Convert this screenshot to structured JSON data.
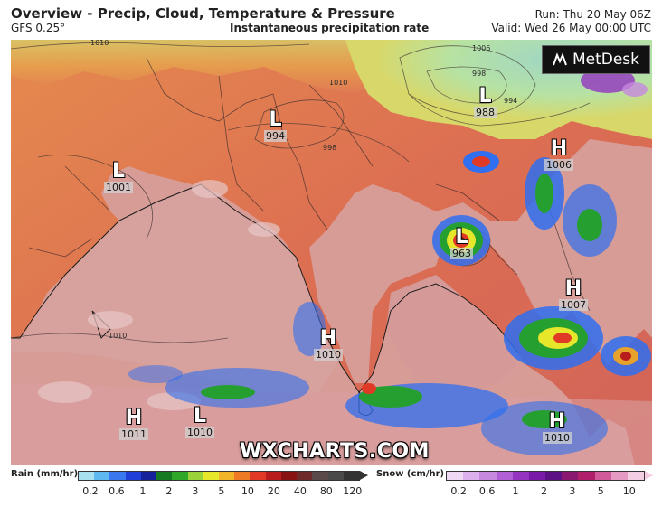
{
  "header": {
    "title": "Overview - Precip, Cloud, Temperature & Pressure",
    "model": "GFS 0.25°",
    "subtitle": "Instantaneous precipitation rate",
    "run": "Run: Thu 20 May 06Z",
    "valid": "Valid: Wed 26 May 00:00 UTC"
  },
  "logo": {
    "text": "MetDesk",
    "icon": "metdesk-logo-icon"
  },
  "watermark": "WXCHARTS.COM",
  "pressure_systems": [
    {
      "type": "L",
      "value": "994"
    },
    {
      "type": "L",
      "value": "1001"
    },
    {
      "type": "L",
      "value": "988"
    },
    {
      "type": "H",
      "value": "1006"
    },
    {
      "type": "L",
      "value": "963"
    },
    {
      "type": "H",
      "value": "1007"
    },
    {
      "type": "H",
      "value": "1010"
    },
    {
      "type": "H",
      "value": "1011"
    },
    {
      "type": "L",
      "value": "1010"
    },
    {
      "type": "H",
      "value": "1010"
    }
  ],
  "isobar_labels": [
    "1010",
    "1006",
    "998",
    "994",
    "998",
    "1010",
    "1010"
  ],
  "legend": {
    "rain_title": "Rain (mm/hr)",
    "rain_ticks": [
      "0.2",
      "0.6",
      "1",
      "2",
      "3",
      "5",
      "10",
      "20",
      "40",
      "80",
      "120"
    ],
    "rain_colors": [
      "#a8e0f0",
      "#5fb8f0",
      "#3a78f0",
      "#1f3fd8",
      "#16229a",
      "#157a22",
      "#2fa82a",
      "#9ad23a",
      "#e6e62a",
      "#f2b52a",
      "#ee7a26",
      "#e03a26",
      "#b81c1c",
      "#861212",
      "#6e2a2a",
      "#5a4a4a",
      "#4a4a4a",
      "#333333"
    ],
    "snow_title": "Snow (cm/hr)",
    "snow_ticks": [
      "0.2",
      "0.6",
      "1",
      "2",
      "3",
      "5",
      "10"
    ],
    "snow_colors": [
      "#efd8f4",
      "#dcb0ec",
      "#c788e0",
      "#b060d4",
      "#9434c0",
      "#7a1aa8",
      "#5c1284",
      "#8a1870",
      "#b0206a",
      "#d05a9a",
      "#e59ac4",
      "#f3cde2"
    ]
  },
  "colors": {
    "land": "#e07a55",
    "sea": "#d99a94",
    "cold_north": "#b8e0a0",
    "accent_header": "#222222"
  }
}
